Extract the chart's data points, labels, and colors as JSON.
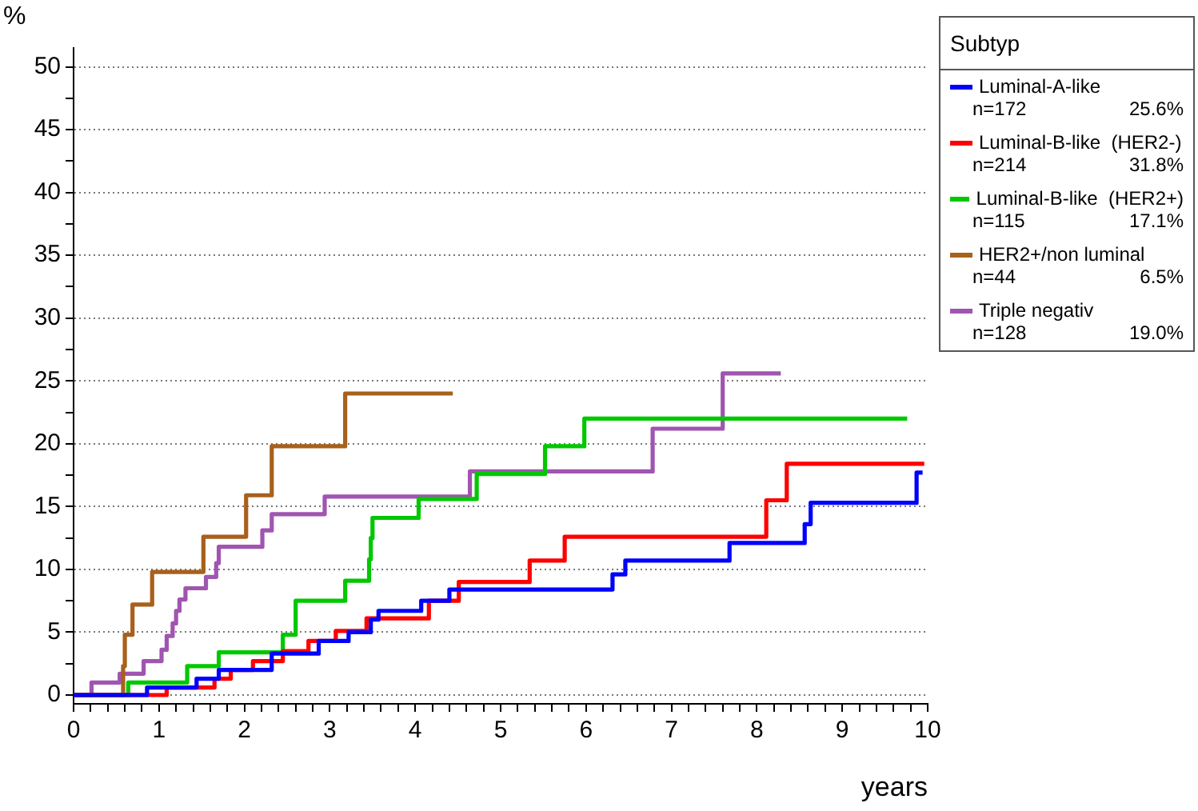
{
  "chart_data": {
    "type": "step",
    "xlabel": "years",
    "ylabel": "%",
    "legend_title": "Subtyp",
    "legend": "right",
    "grid": "y",
    "marker": "none",
    "line_style": "solid",
    "annotations": [
      "n=172 25.6%",
      "n=214 31.8%",
      "n=115 17.1%",
      "n=44 6.5%",
      "n=128 19.0%"
    ],
    "xlim": [
      0,
      10
    ],
    "ylim": [
      -0.7,
      51.5
    ],
    "xticks": [
      0,
      {
        "value": 0.2,
        "label": null
      },
      {
        "value": 0.4,
        "label": null
      },
      {
        "value": 0.6,
        "label": null
      },
      {
        "value": 0.8,
        "label": null
      },
      1,
      {
        "value": 1.2,
        "label": null
      },
      {
        "value": 1.4,
        "label": null
      },
      {
        "value": 1.6,
        "label": null
      },
      {
        "value": 1.8,
        "label": null
      },
      2,
      {
        "value": 2.2,
        "label": null
      },
      {
        "value": 2.4,
        "label": null
      },
      {
        "value": 2.6,
        "label": null
      },
      {
        "value": 2.8,
        "label": null
      },
      3,
      {
        "value": 3.2,
        "label": null
      },
      {
        "value": 3.4,
        "label": null
      },
      {
        "value": 3.6,
        "label": null
      },
      {
        "value": 3.8,
        "label": null
      },
      4,
      {
        "value": 4.2,
        "label": null
      },
      {
        "value": 4.4,
        "label": null
      },
      {
        "value": 4.6,
        "label": null
      },
      {
        "value": 4.8,
        "label": null
      },
      5,
      {
        "value": 5.2,
        "label": null
      },
      {
        "value": 5.4,
        "label": null
      },
      {
        "value": 5.6,
        "label": null
      },
      {
        "value": 5.8,
        "label": null
      },
      6,
      {
        "value": 6.2,
        "label": null
      },
      {
        "value": 6.4,
        "label": null
      },
      {
        "value": 6.6,
        "label": null
      },
      {
        "value": 6.8,
        "label": null
      },
      7,
      {
        "value": 7.2,
        "label": null
      },
      {
        "value": 7.4,
        "label": null
      },
      {
        "value": 7.6,
        "label": null
      },
      {
        "value": 7.8,
        "label": null
      },
      8,
      {
        "value": 8.2,
        "label": null
      },
      {
        "value": 8.4,
        "label": null
      },
      {
        "value": 8.6,
        "label": null
      },
      {
        "value": 8.8,
        "label": null
      },
      9,
      {
        "value": 9.2,
        "label": null
      },
      {
        "value": 9.4,
        "label": null
      },
      {
        "value": 9.6,
        "label": null
      },
      {
        "value": 9.8,
        "label": null
      },
      10
    ],
    "yticks": [
      0,
      {
        "value": 2.5,
        "label": null
      },
      5,
      {
        "value": 7.5,
        "label": null
      },
      10,
      {
        "value": 12.5,
        "label": null
      },
      15,
      {
        "value": 17.5,
        "label": null
      },
      20,
      {
        "value": 22.5,
        "label": null
      },
      25,
      {
        "value": 27.5,
        "label": null
      },
      30,
      {
        "value": 32.5,
        "label": null
      },
      35,
      {
        "value": 37.5,
        "label": null
      },
      40,
      {
        "value": 42.5,
        "label": null
      },
      45,
      {
        "value": 47.5,
        "label": null
      },
      50
    ],
    "series": [
      {
        "name": "Luminal-A-like",
        "color": "#0000ff",
        "x": [
          0,
          0.86,
          1.44,
          1.7,
          2.32,
          2.87,
          3.22,
          3.48,
          3.57,
          4.07,
          4.4,
          6.31,
          6.46,
          7.68,
          8.56,
          8.63,
          9.87,
          9.94
        ],
        "values": [
          0,
          0.6,
          1.3,
          2.0,
          3.3,
          4.3,
          5.0,
          6.0,
          6.7,
          7.5,
          8.4,
          9.6,
          10.7,
          12.1,
          13.6,
          15.3,
          17.7,
          17.7
        ]
      },
      {
        "name": "Luminal-B-like  (HER2-)",
        "color": "#ff0000",
        "x": [
          0,
          1.09,
          1.65,
          1.84,
          2.1,
          2.45,
          2.75,
          3.07,
          3.43,
          4.16,
          4.51,
          5.34,
          5.75,
          8.11,
          8.35,
          9.96
        ],
        "values": [
          0,
          0.6,
          1.3,
          2.0,
          2.7,
          3.5,
          4.3,
          5.1,
          6.1,
          7.5,
          9.0,
          10.7,
          12.6,
          15.5,
          18.4,
          18.4
        ]
      },
      {
        "name": "Luminal-B-like  (HER2+)",
        "color": "#00c800",
        "x": [
          0,
          0.64,
          1.33,
          1.7,
          2.45,
          2.6,
          3.18,
          3.46,
          3.48,
          3.5,
          4.04,
          4.72,
          5.52,
          5.98,
          9.76
        ],
        "values": [
          0,
          1.0,
          2.3,
          3.4,
          4.8,
          7.5,
          9.1,
          10.8,
          12.5,
          14.1,
          15.6,
          17.6,
          19.8,
          22.0,
          22.0
        ]
      },
      {
        "name": "HER2+/non luminal",
        "color": "#a8601c",
        "x": [
          0,
          0.58,
          0.6,
          0.69,
          0.92,
          1.52,
          2.02,
          2.32,
          3.18,
          4.44
        ],
        "values": [
          0,
          2.3,
          4.8,
          7.2,
          9.8,
          12.6,
          15.9,
          19.8,
          24.0,
          24.0
        ]
      },
      {
        "name": "Triple negativ",
        "color": "#a055b0",
        "x": [
          0,
          0.21,
          0.54,
          0.82,
          1.03,
          1.09,
          1.16,
          1.2,
          1.24,
          1.31,
          1.55,
          1.67,
          1.7,
          2.21,
          2.32,
          2.94,
          4.64,
          6.78,
          7.6,
          8.28
        ],
        "values": [
          0,
          1.0,
          1.7,
          2.7,
          3.6,
          4.7,
          5.7,
          6.7,
          7.6,
          8.5,
          9.4,
          10.5,
          11.8,
          13.1,
          14.4,
          15.8,
          17.8,
          21.2,
          25.6,
          25.6
        ]
      }
    ]
  }
}
